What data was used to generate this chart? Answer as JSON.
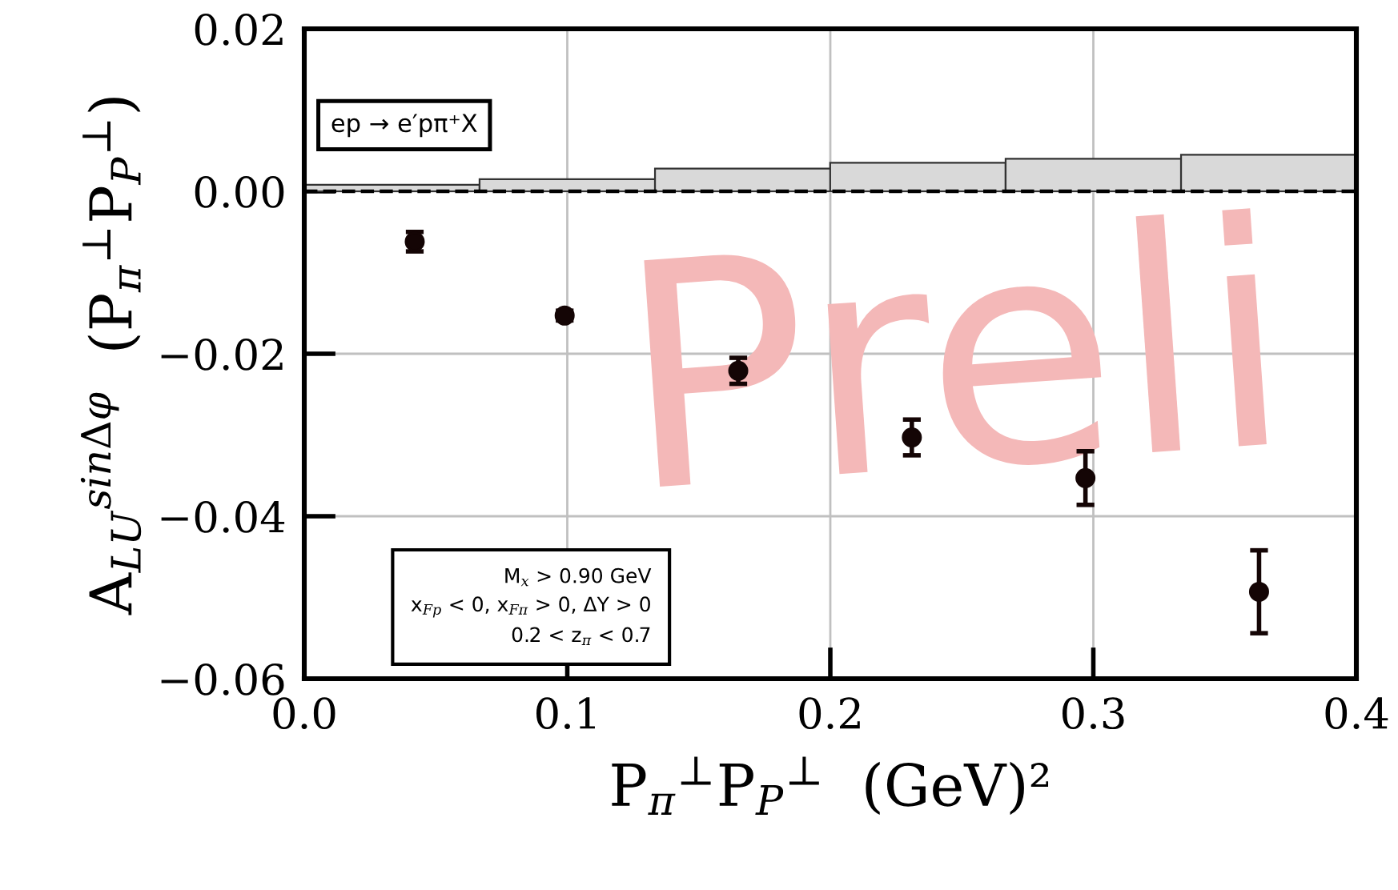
{
  "chart_data": {
    "type": "scatter",
    "xlabel": "P$_{π}$$^{⊥}$P$_{P}$$^{⊥}$ (GeV)²",
    "ylabel": "A$_{LU}$$^{sinΔφ}$ (P$_{π}$$^{⊥}$P$_{P}$$^{⊥}$)",
    "xlim": [
      0,
      0.4
    ],
    "ylim": [
      -0.06,
      0.02
    ],
    "xticks": [
      {
        "value": 0,
        "label": "0.0"
      },
      {
        "value": 0.1,
        "label": "0.1"
      },
      {
        "value": 0.2,
        "label": "0.2"
      },
      {
        "value": 0.3,
        "label": "0.3"
      },
      {
        "value": 0.4,
        "label": "0.4"
      }
    ],
    "yticks": [
      {
        "value": -0.06,
        "label": "−0.06"
      },
      {
        "value": -0.04,
        "label": "−0.04"
      },
      {
        "value": -0.02,
        "label": "−0.02"
      },
      {
        "value": 0,
        "label": "0.00"
      },
      {
        "value": 0.02,
        "label": "0.02"
      }
    ],
    "grid": true,
    "marker": "circle",
    "series": [
      {
        "type": "bar",
        "color": "#d9d9d9",
        "x": [
          0.0333,
          0.1,
          0.1667,
          0.2333,
          0.3,
          0.3667
        ],
        "values": [
          0.0008,
          0.0015,
          0.0028,
          0.0035,
          0.004,
          0.0045
        ]
      },
      {
        "color": "#140505",
        "x": [
          0.042,
          0.099,
          0.165,
          0.231,
          0.297,
          0.363
        ],
        "values": [
          -0.0062,
          -0.0153,
          -0.0221,
          -0.0303,
          -0.0353,
          -0.0493
        ],
        "errors": [
          0.0012,
          0.0006,
          0.0016,
          0.0022,
          0.0033,
          0.0051
        ]
      }
    ],
    "ref_lines": [
      {
        "axis": "y",
        "value": 0,
        "line_style": "dashed",
        "color": "#000000"
      }
    ],
    "annotations": [
      "ep → e′pπ⁺X",
      "M$_{x}$ > 0.90 GeV\nx$_{Fp}$ < 0, x$_{Fπ}$ > 0, ΔY > 0\n0.2 < z$_{π}$ < 0.7",
      "Preli"
    ]
  }
}
